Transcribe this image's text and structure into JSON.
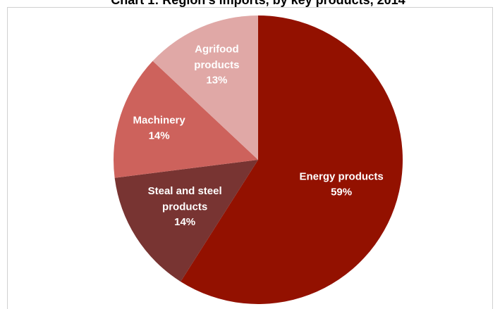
{
  "chart_data": {
    "type": "pie",
    "title": "Chart 1: Region's imports, by key products, 2014",
    "categories": [
      "Energy products",
      "Steal and steel products",
      "Machinery",
      "Agrifood products"
    ],
    "values": [
      59,
      14,
      14,
      13
    ],
    "value_labels": [
      "59%",
      "14%",
      "14%",
      "13%"
    ],
    "colors": [
      "#931100",
      "#783432",
      "#cd625c",
      "#e0a8a6"
    ]
  }
}
